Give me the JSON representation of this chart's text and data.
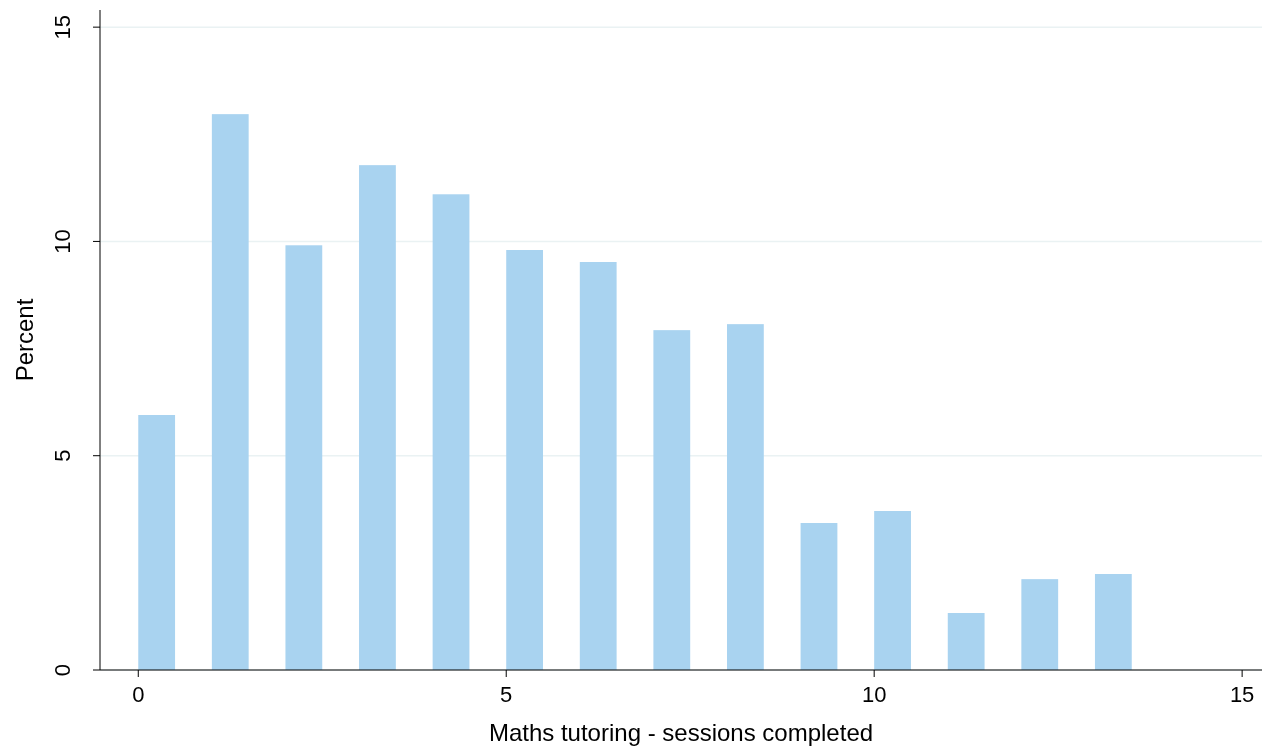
{
  "chart_data": {
    "type": "bar",
    "xlabel": "Maths tutoring - sessions completed",
    "ylabel": "Percent",
    "x": [
      0.25,
      1.25,
      2.25,
      3.25,
      4.25,
      5.25,
      6.25,
      7.25,
      8.25,
      9.25,
      10.25,
      11.25,
      12.25,
      13.25
    ],
    "values": [
      5.95,
      12.97,
      9.91,
      11.78,
      11.1,
      9.8,
      9.52,
      7.93,
      8.07,
      3.43,
      3.71,
      1.33,
      2.12,
      2.24
    ],
    "color": "#a9d3f0",
    "xlim": [
      -0.52,
      15.27
    ],
    "xticks": [
      0,
      5,
      10,
      15
    ],
    "ylim": [
      0,
      15.4
    ],
    "yticks": [
      0,
      5,
      10,
      15
    ],
    "grid": "y"
  }
}
